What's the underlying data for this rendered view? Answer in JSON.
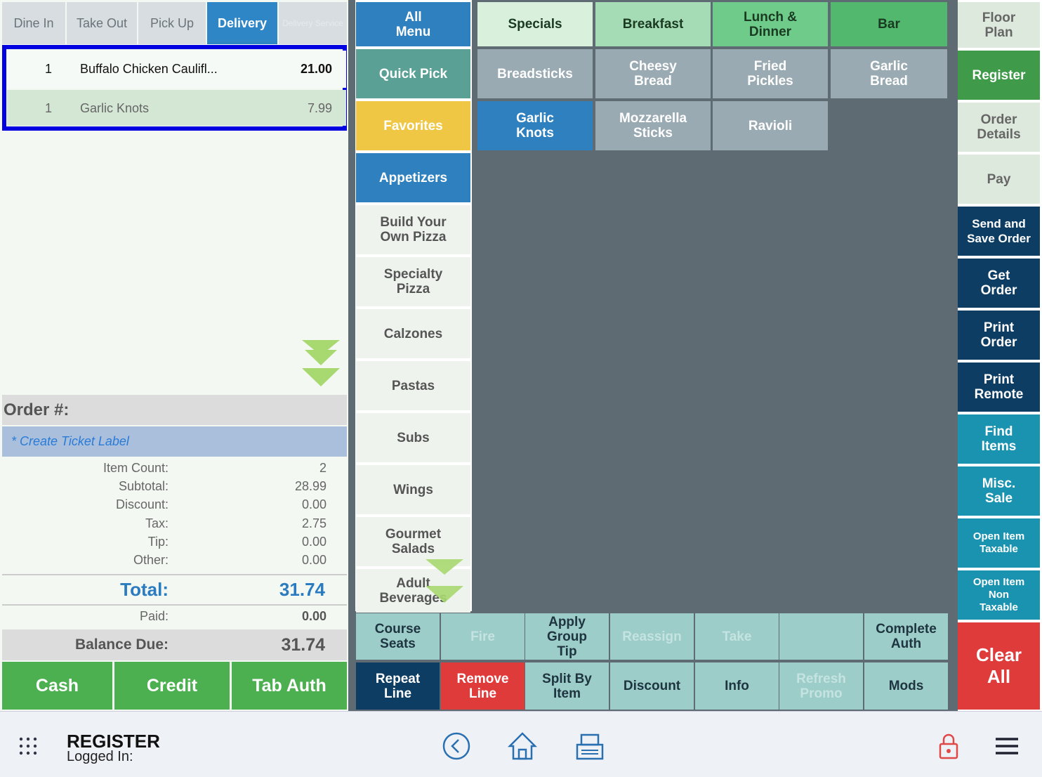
{
  "order_type_tabs": [
    "Dine In",
    "Take Out",
    "Pick Up",
    "Delivery",
    "Delivery Service"
  ],
  "order_items": [
    {
      "qty": "1",
      "name": "Buffalo Chicken Caulifl...",
      "price": "21.00"
    },
    {
      "qty": "1",
      "name": "Garlic Knots",
      "price": "7.99"
    }
  ],
  "order_number_label": "Order #:",
  "ticket_label": "* Create Ticket Label",
  "summary": [
    {
      "label": "Item Count:",
      "value": "2"
    },
    {
      "label": "Subtotal:",
      "value": "28.99"
    },
    {
      "label": "Discount:",
      "value": "0.00"
    },
    {
      "label": "Tax:",
      "value": "2.75"
    },
    {
      "label": "Tip:",
      "value": "0.00"
    },
    {
      "label": "Other:",
      "value": "0.00"
    }
  ],
  "total": {
    "label": "Total:",
    "value": "31.74"
  },
  "paid": {
    "label": "Paid:",
    "value": "0.00"
  },
  "balance_due": {
    "label": "Balance Due:",
    "value": "31.74"
  },
  "payment_buttons": [
    "Cash",
    "Credit",
    "Tab Auth"
  ],
  "categories": [
    "All Menu",
    "Quick Pick",
    "Favorites",
    "Appetizers",
    "Build Your Own Pizza",
    "Specialty Pizza",
    "Calzones",
    "Pastas",
    "Subs",
    "Wings",
    "Gourmet Salads",
    "Adult Beverages"
  ],
  "menu_tabs": [
    "Specials",
    "Breakfast",
    "Lunch & Dinner",
    "Bar"
  ],
  "menu_items": [
    "Breadsticks",
    "Cheesy Bread",
    "Fried Pickles",
    "Garlic Bread",
    "Garlic Knots",
    "Mozzarella Sticks",
    "Ravioli"
  ],
  "side_actions": [
    "Floor Plan",
    "Register",
    "Order Details",
    "Pay",
    "Send and Save Order",
    "Get Order",
    "Print Order",
    "Print Remote",
    "Find Items",
    "Misc. Sale",
    "Open Item Taxable",
    "Open Item Non Taxable",
    "Clear All"
  ],
  "order_actions": {
    "row1": [
      "Course Seats",
      "Fire",
      "Apply Group Tip",
      "Reassign",
      "Take",
      "Complete Auth"
    ],
    "row2": [
      "Repeat Line",
      "Remove Line",
      "Split By Item",
      "Discount",
      "Info",
      "Refresh Promo",
      "Mods"
    ]
  },
  "footer": {
    "title": "REGISTER",
    "status": "Logged In:"
  }
}
